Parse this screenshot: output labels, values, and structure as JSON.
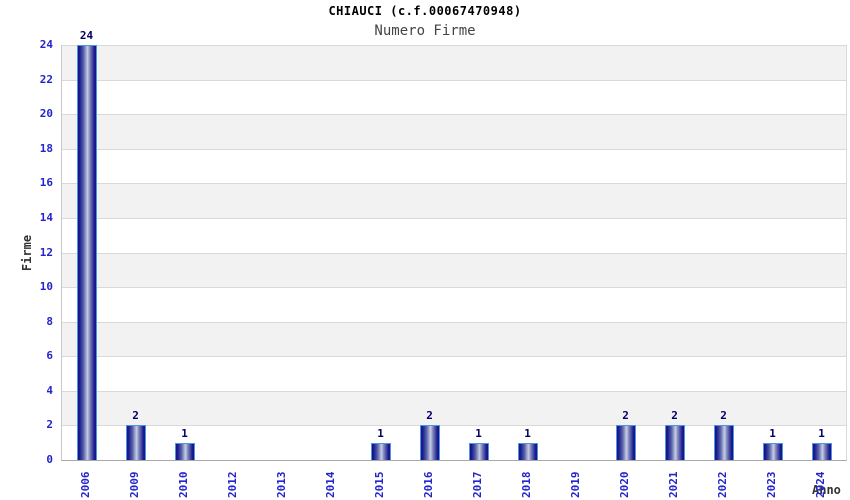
{
  "chart_data": {
    "type": "bar",
    "title": "CHIAUCI (c.f.00067470948)",
    "subtitle": "Numero Firme",
    "xlabel": "Anno",
    "ylabel": "Firme",
    "categories": [
      "2006",
      "2009",
      "2010",
      "2012",
      "2013",
      "2014",
      "2015",
      "2016",
      "2017",
      "2018",
      "2019",
      "2020",
      "2021",
      "2022",
      "2023",
      "2024"
    ],
    "values": [
      24,
      2,
      1,
      0,
      0,
      0,
      1,
      2,
      1,
      1,
      0,
      2,
      2,
      2,
      1,
      1
    ],
    "ylim": [
      0,
      24
    ],
    "yticks": [
      0,
      2,
      4,
      6,
      8,
      10,
      12,
      14,
      16,
      18,
      20,
      22,
      24
    ],
    "grid": true,
    "legend": "none",
    "value_labels_shown_for_nonzero_bars": true,
    "colors": {
      "bar_dark": "#14148a",
      "bar_light": "#c6cee6",
      "bar_border": "#4d96e0",
      "tick_label": "#2424cc",
      "value_label": "#000066",
      "band_gray": "#f2f2f2",
      "gridline": "#d9d9d9",
      "axis_line": "#a8a8a8",
      "axis_title": "#333333",
      "title_color": "#000000",
      "subtitle_color": "#444444"
    }
  }
}
